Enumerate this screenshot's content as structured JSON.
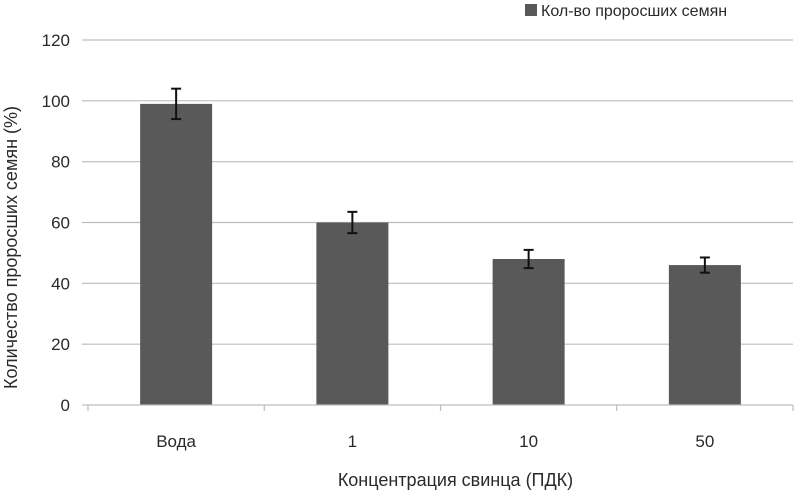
{
  "chart_data": {
    "type": "bar",
    "categories": [
      "Вода",
      "1",
      "10",
      "50"
    ],
    "series": [
      {
        "name": "Кол-во проросших семян",
        "values": [
          99,
          60,
          48,
          46
        ],
        "errors": [
          5,
          3.5,
          3,
          2.5
        ],
        "color": "#595959"
      }
    ],
    "xlabel": "Концентрация свинца (ПДК)",
    "ylabel": "Количество проросших семян (%)",
    "ylim": [
      0,
      120
    ],
    "yticks": [
      0,
      20,
      40,
      60,
      80,
      100,
      120
    ],
    "grid": true,
    "legend_position": "top-right"
  }
}
